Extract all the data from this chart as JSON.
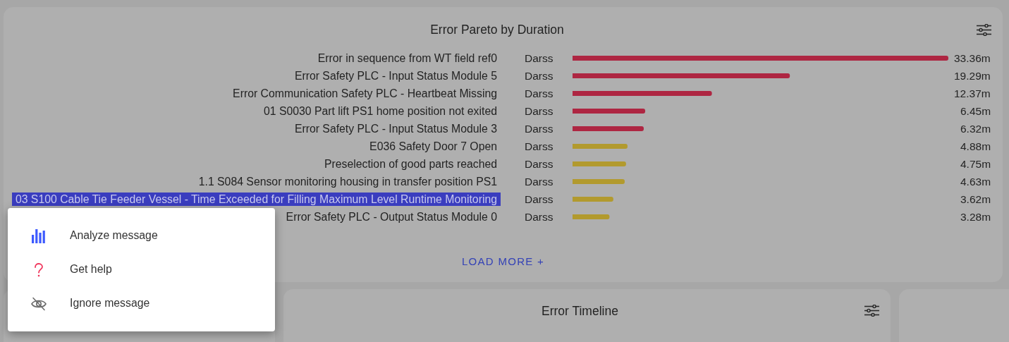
{
  "chart_data": [
    {
      "type": "bar",
      "title": "Error Pareto by Duration",
      "orientation": "horizontal",
      "categories": [
        "Error in sequence from WT field ref0",
        "Error Safety PLC - Input Status Module 5",
        "Error Communication Safety PLC - Heartbeat Missing",
        "01 S0030 Part lift PS1 home position not exited",
        "Error Safety PLC - Input Status Module 3",
        "E036 Safety Door 7 Open",
        "Preselection of good parts reached",
        "1.1 S084 Sensor monitoring housing in transfer position PS1",
        "03 S100 Cable Tie Feeder Vessel - Time Exceeded for Filling Maximum Level Runtime Monitoring",
        "Error Safety PLC - Output Status Module 0"
      ],
      "y2_categories": [
        "Darss",
        "Darss",
        "Darss",
        "Darss",
        "Darss",
        "Darss",
        "Darss",
        "Darss",
        "Darss",
        "Darss"
      ],
      "values": [
        33.36,
        19.29,
        12.37,
        6.45,
        6.32,
        4.88,
        4.75,
        4.63,
        3.62,
        3.28
      ],
      "colors": [
        "#ae2642",
        "#ae2642",
        "#ae2642",
        "#ae2642",
        "#ae2642",
        "#b29a2e",
        "#b29a2e",
        "#b29a2e",
        "#b29a2e",
        "#b29a2e"
      ],
      "value_labels": [
        "33.36m",
        "19.29m",
        "12.37m",
        "6.45m",
        "6.32m",
        "4.88m",
        "4.75m",
        "4.63m",
        "3.62m",
        "3.28m"
      ],
      "tick_labels": "y",
      "annotations": [
        "LOAD MORE +",
        "Analyze message",
        "Get help",
        "Ignore message"
      ]
    },
    {
      "type": "other",
      "title": "Error Timeline"
    }
  ]
}
